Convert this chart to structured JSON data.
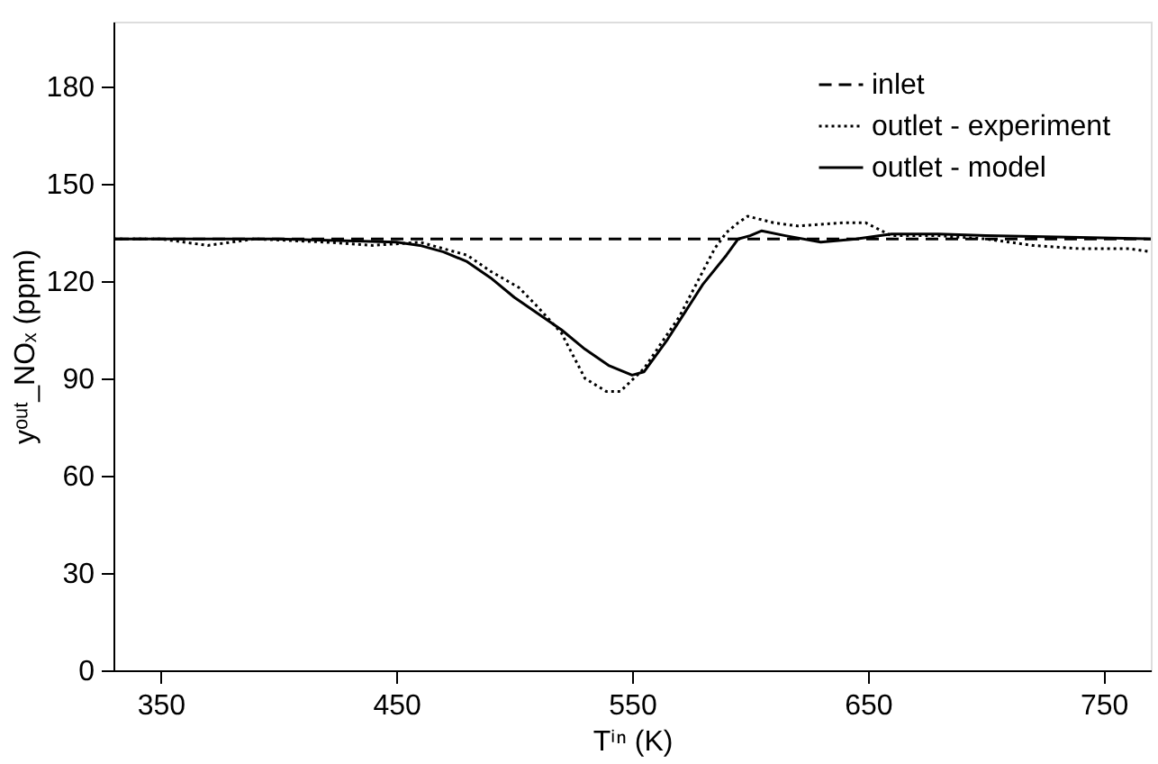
{
  "chart_data": {
    "type": "line",
    "xlabel": "Tⁱⁿ (K)",
    "ylabel": "yᵒᵘᵗ_NOₓ (ppm)",
    "xlim": [
      330,
      770
    ],
    "ylim": [
      0,
      200
    ],
    "xticks": [
      350,
      450,
      550,
      650,
      750
    ],
    "yticks": [
      0,
      30,
      60,
      90,
      120,
      150,
      180
    ],
    "grid": false,
    "legend": "top right",
    "marker": "none",
    "series": [
      {
        "name": "inlet",
        "color": "#000000",
        "line_style": "dashed",
        "x": [
          330,
          770
        ],
        "values": [
          133,
          133
        ]
      },
      {
        "name": "outlet - experiment",
        "color": "#000000",
        "line_style": "dotted",
        "x": [
          330,
          350,
          370,
          390,
          420,
          440,
          460,
          480,
          490,
          502,
          510,
          520,
          530,
          539,
          545,
          555,
          570,
          585,
          590,
          595,
          599,
          610,
          620,
          640,
          649,
          660,
          680,
          700,
          720,
          740,
          761,
          770
        ],
        "values": [
          133,
          133,
          131,
          133,
          132,
          131,
          132,
          128,
          123,
          118,
          112,
          104,
          90,
          86,
          86,
          93,
          109,
          130,
          135,
          138,
          140,
          138,
          137,
          138,
          138,
          134,
          134,
          133,
          131,
          130,
          130,
          129
        ]
      },
      {
        "name": "outlet - model",
        "color": "#000000",
        "line_style": "solid",
        "x": [
          330,
          400,
          450,
          460,
          470,
          480,
          490,
          500,
          510,
          520,
          530,
          540,
          550,
          555,
          565,
          580,
          590,
          595,
          600,
          605,
          615,
          630,
          645,
          660,
          680,
          700,
          740,
          770
        ],
        "values": [
          133,
          133,
          132,
          131,
          129,
          126,
          121,
          115,
          110,
          105,
          99,
          94,
          91,
          92,
          102,
          119,
          128,
          133,
          134,
          135.5,
          134,
          132,
          133,
          134.5,
          134.5,
          134,
          133.5,
          133
        ]
      }
    ]
  }
}
